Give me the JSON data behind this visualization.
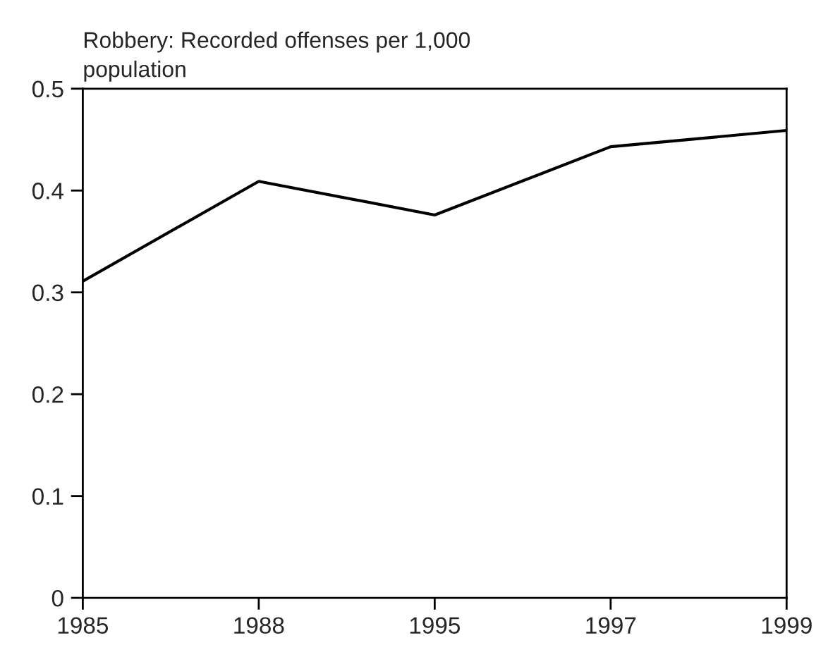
{
  "chart_data": {
    "type": "line",
    "title": "Robbery: Recorded offenses per 1,000\npopulation",
    "categories": [
      "1985",
      "1988",
      "1995",
      "1997",
      "1999"
    ],
    "series": [
      {
        "color": "#000000",
        "values": [
          0.311,
          0.409,
          0.376,
          0.443,
          0.459
        ]
      }
    ],
    "ylim": [
      0,
      0.5
    ],
    "yticks": [
      {
        "value": 0,
        "label": "0"
      },
      0.1,
      0.2,
      0.3,
      0.4,
      0.5
    ],
    "grid": false,
    "legend": false,
    "marker": "none",
    "line_style": "solid"
  }
}
